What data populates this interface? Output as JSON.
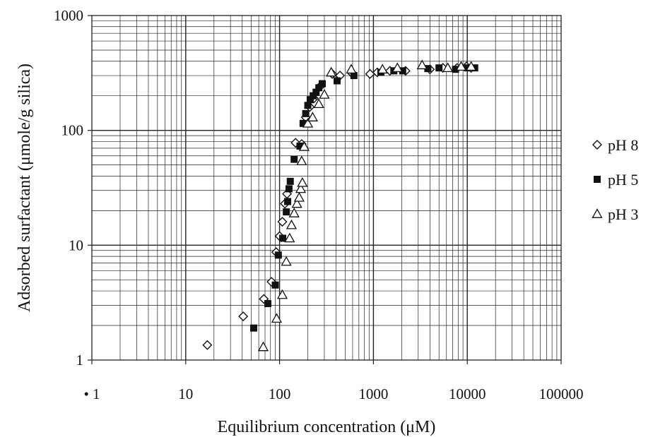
{
  "chart_data": {
    "type": "scatter",
    "xlabel": "Equilibrium concentration (μM)",
    "ylabel": "Adsorbed surfactant (μmole/g silica)",
    "x_scale": "log",
    "y_scale": "log",
    "xlim": [
      1,
      100000
    ],
    "ylim": [
      1,
      1000
    ],
    "x_ticks": [
      1,
      10,
      100,
      1000,
      10000,
      100000
    ],
    "x_tick_labels": [
      "• 1",
      "10",
      "100",
      "1000",
      "10000",
      "100000"
    ],
    "y_ticks": [
      1,
      10,
      100,
      1000
    ],
    "y_tick_labels": [
      "1",
      "10",
      "100",
      "1000"
    ],
    "grid": "major and minor (log)",
    "legend_position": "right",
    "series": [
      {
        "name": "pH 8",
        "marker": "diamond-open",
        "color": "#111111",
        "points": [
          [
            17,
            1.35
          ],
          [
            41,
            2.4
          ],
          [
            68,
            3.4
          ],
          [
            82,
            4.8
          ],
          [
            92,
            8.7
          ],
          [
            100,
            12
          ],
          [
            107,
            16
          ],
          [
            114,
            23
          ],
          [
            120,
            28
          ],
          [
            148,
            78
          ],
          [
            172,
            76
          ],
          [
            190,
            130
          ],
          [
            210,
            160
          ],
          [
            232,
            190
          ],
          [
            275,
            245
          ],
          [
            365,
            310
          ],
          [
            440,
            300
          ],
          [
            600,
            310
          ],
          [
            920,
            310
          ],
          [
            1100,
            320
          ],
          [
            1500,
            330
          ],
          [
            2200,
            330
          ],
          [
            4000,
            340
          ],
          [
            5500,
            350
          ],
          [
            7800,
            350
          ],
          [
            9800,
            360
          ],
          [
            11000,
            350
          ]
        ]
      },
      {
        "name": "pH 5",
        "marker": "square-filled",
        "color": "#111111",
        "points": [
          [
            53,
            1.9
          ],
          [
            75,
            3.1
          ],
          [
            90,
            4.5
          ],
          [
            97,
            8.2
          ],
          [
            108,
            11.5
          ],
          [
            118,
            19.5
          ],
          [
            122,
            24
          ],
          [
            126,
            31
          ],
          [
            130,
            36
          ],
          [
            143,
            56
          ],
          [
            165,
            73
          ],
          [
            178,
            115
          ],
          [
            190,
            140
          ],
          [
            200,
            165
          ],
          [
            212,
            185
          ],
          [
            228,
            200
          ],
          [
            245,
            215
          ],
          [
            262,
            235
          ],
          [
            285,
            255
          ],
          [
            410,
            270
          ],
          [
            620,
            300
          ],
          [
            1200,
            320
          ],
          [
            1650,
            330
          ],
          [
            2050,
            330
          ],
          [
            3800,
            345
          ],
          [
            5000,
            350
          ],
          [
            7500,
            340
          ],
          [
            10000,
            350
          ],
          [
            12000,
            350
          ]
        ]
      },
      {
        "name": "pH 3",
        "marker": "triangle-open",
        "color": "#111111",
        "points": [
          [
            67,
            1.3
          ],
          [
            93,
            2.3
          ],
          [
            107,
            3.7
          ],
          [
            118,
            7.2
          ],
          [
            128,
            11.5
          ],
          [
            134,
            15
          ],
          [
            143,
            19
          ],
          [
            153,
            23
          ],
          [
            162,
            26
          ],
          [
            168,
            31
          ],
          [
            175,
            35
          ],
          [
            172,
            54
          ],
          [
            183,
            72
          ],
          [
            200,
            115
          ],
          [
            225,
            130
          ],
          [
            262,
            170
          ],
          [
            300,
            205
          ],
          [
            355,
            320
          ],
          [
            580,
            340
          ],
          [
            1250,
            340
          ],
          [
            1800,
            350
          ],
          [
            3300,
            370
          ],
          [
            6200,
            350
          ],
          [
            8600,
            360
          ],
          [
            11000,
            360
          ]
        ]
      }
    ]
  }
}
